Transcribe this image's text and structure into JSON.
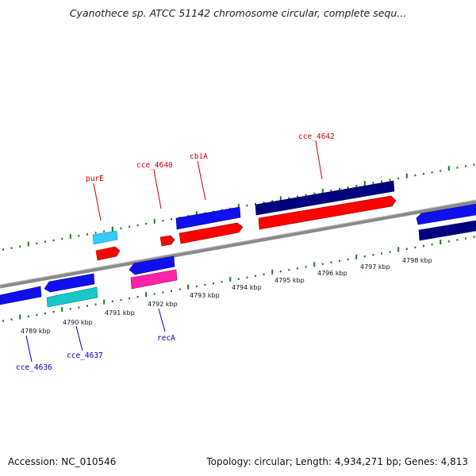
{
  "header": {
    "title": "Cyanothece sp. ATCC 51142 chromosome circular, complete sequ..."
  },
  "footer": {
    "accession": "Accession: NC_010546",
    "summary": "Topology: circular; Length: 4,934,271 bp; Genes: 4,813"
  },
  "colors": {
    "backbone": "#8a8a8a",
    "tick_dots": "#1f7a1f",
    "gene_label_forward": "#cc0000",
    "gene_label_reverse": "#0000bb",
    "gene_red": "#ff0000",
    "gene_blue": "#1010ee",
    "gene_navy": "#000080",
    "gene_cyan": "#16c8c8",
    "gene_lightblue": "#33ccff",
    "gene_pink": "#ff22aa"
  },
  "ticks": [
    {
      "label": "4789 kbp"
    },
    {
      "label": "4790 kbp"
    },
    {
      "label": "4791 kbp"
    },
    {
      "label": "4792 kbp"
    },
    {
      "label": "4793 kbp"
    },
    {
      "label": "4794 kbp"
    },
    {
      "label": "4795 kbp"
    },
    {
      "label": "4796 kbp"
    },
    {
      "label": "4797 kbp"
    },
    {
      "label": "4798 kbp"
    }
  ],
  "gene_labels": [
    {
      "name": "purE",
      "strand": "forward"
    },
    {
      "name": "cce_4640",
      "strand": "forward"
    },
    {
      "name": "cbiA",
      "strand": "forward"
    },
    {
      "name": "cce_4642",
      "strand": "forward"
    },
    {
      "name": "cce_4636",
      "strand": "reverse"
    },
    {
      "name": "cce_4637",
      "strand": "reverse"
    },
    {
      "name": "recA",
      "strand": "reverse"
    }
  ]
}
